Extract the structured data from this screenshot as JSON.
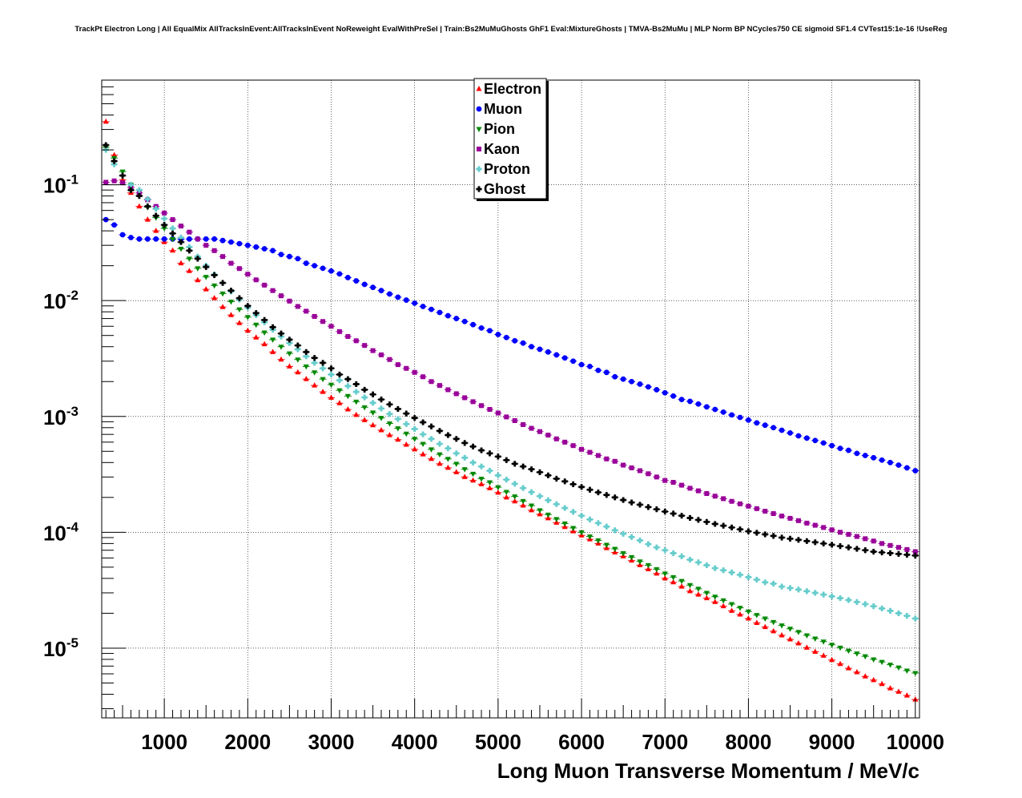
{
  "title": "TrackPt Electron Long | All EqualMix AllTracksInEvent:AllTracksInEvent NoReweight EvalWithPreSel | Train:Bs2MuMuGhosts GhF1 Eval:MixtureGhosts | TMVA-Bs2MuMu | MLP Norm BP NCycles750 CE sigmoid SF1.4 CVTest15:1e-16 !UseReg",
  "chart_data": {
    "type": "scatter",
    "title": "TrackPt Electron Long | All EqualMix AllTracksInEvent:AllTracksInEvent NoReweight EvalWithPreSel | Train:Bs2MuMuGhosts GhF1 Eval:MixtureGhosts | TMVA-Bs2MuMu | MLP Norm BP NCycles750 CE sigmoid SF1.4 CVTest15:1e-16 !UseReg",
    "xlabel": "Long Muon Transverse Momentum / MeV/c",
    "ylabel": "",
    "xlim": [
      250,
      10050
    ],
    "ylim": [
      2.5e-06,
      0.8
    ],
    "yscale": "log",
    "grid": true,
    "legend_position": "top-center",
    "x_ticks": [
      1000,
      2000,
      3000,
      4000,
      5000,
      6000,
      7000,
      8000,
      9000,
      10000
    ],
    "x_tick_labels": [
      "1000",
      "2000",
      "3000",
      "4000",
      "5000",
      "6000",
      "7000",
      "8000",
      "9000",
      "10000"
    ],
    "y_ticks": [
      0.1,
      0.01,
      0.001,
      0.0001,
      1e-05
    ],
    "y_tick_labels": [
      {
        "base": "10",
        "exp": "-1"
      },
      {
        "base": "10",
        "exp": "-2"
      },
      {
        "base": "10",
        "exp": "-3"
      },
      {
        "base": "10",
        "exp": "-4"
      },
      {
        "base": "10",
        "exp": "-5"
      }
    ],
    "bin_width": 100,
    "x_start": 300,
    "series": [
      {
        "name": "Electron",
        "color": "#ff0000",
        "marker": "triangle-up",
        "values": [
          0.35,
          0.18,
          0.11,
          0.085,
          0.065,
          0.05,
          0.04,
          0.032,
          0.027,
          0.021,
          0.018,
          0.015,
          0.0125,
          0.0105,
          0.0088,
          0.0075,
          0.0064,
          0.0055,
          0.0048,
          0.0042,
          0.0036,
          0.0031,
          0.0027,
          0.0024,
          0.0021,
          0.00185,
          0.00163,
          0.00145,
          0.0013,
          0.00115,
          0.00103,
          0.00093,
          0.00084,
          0.00076,
          0.00069,
          0.00063,
          0.00057,
          0.00052,
          0.00047,
          0.00043,
          0.00039,
          0.00036,
          0.00033,
          0.0003,
          0.00028,
          0.00026,
          0.00024,
          0.00022,
          0.0002,
          0.000185,
          0.00017,
          0.000155,
          0.000143,
          0.000132,
          0.000121,
          0.000111,
          0.000102,
          9.4e-05,
          8.7e-05,
          8e-05,
          7.3e-05,
          6.7e-05,
          6.2e-05,
          5.7e-05,
          5.2e-05,
          4.8e-05,
          4.4e-05,
          4e-05,
          3.7e-05,
          3.4e-05,
          3.1e-05,
          2.9e-05,
          2.7e-05,
          2.5e-05,
          2.3e-05,
          2.1e-05,
          1.95e-05,
          1.8e-05,
          1.65e-05,
          1.52e-05,
          1.4e-05,
          1.29e-05,
          1.19e-05,
          1.1e-05,
          1.01e-05,
          9.3e-06,
          8.6e-06,
          7.9e-06,
          7.3e-06,
          6.7e-06,
          6.2e-06,
          5.7e-06,
          5.3e-06,
          4.9e-06,
          4.5e-06,
          4.2e-06,
          3.9e-06,
          3.6e-06
        ]
      },
      {
        "name": "Muon",
        "color": "#0000ff",
        "marker": "circle",
        "values": [
          0.05,
          0.045,
          0.037,
          0.035,
          0.034,
          0.034,
          0.034,
          0.034,
          0.034,
          0.034,
          0.034,
          0.034,
          0.034,
          0.034,
          0.033,
          0.032,
          0.031,
          0.03,
          0.029,
          0.028,
          0.027,
          0.025,
          0.024,
          0.023,
          0.021,
          0.02,
          0.019,
          0.018,
          0.017,
          0.0158,
          0.0148,
          0.0138,
          0.013,
          0.0122,
          0.0114,
          0.0107,
          0.0101,
          0.0095,
          0.0089,
          0.0084,
          0.0079,
          0.0074,
          0.007,
          0.0066,
          0.0062,
          0.0058,
          0.0055,
          0.0051,
          0.0048,
          0.0045,
          0.0043,
          0.004,
          0.0038,
          0.0036,
          0.0034,
          0.0032,
          0.003,
          0.0028,
          0.0027,
          0.0025,
          0.0024,
          0.0022,
          0.0021,
          0.002,
          0.0019,
          0.0018,
          0.0017,
          0.0016,
          0.0015,
          0.0014,
          0.00135,
          0.00128,
          0.00121,
          0.00115,
          0.00109,
          0.00103,
          0.00098,
          0.00093,
          0.00088,
          0.00084,
          0.0008,
          0.00076,
          0.00072,
          0.00068,
          0.00065,
          0.00062,
          0.00059,
          0.00056,
          0.00053,
          0.00051,
          0.00048,
          0.00046,
          0.00044,
          0.00042,
          0.0004,
          0.00038,
          0.00036,
          0.00034
        ]
      },
      {
        "name": "Pion",
        "color": "#008800",
        "marker": "triangle-down",
        "values": [
          0.21,
          0.17,
          0.13,
          0.1,
          0.08,
          0.064,
          0.052,
          0.042,
          0.034,
          0.028,
          0.023,
          0.019,
          0.016,
          0.0135,
          0.0115,
          0.0098,
          0.0084,
          0.0072,
          0.0062,
          0.0053,
          0.0046,
          0.004,
          0.0035,
          0.0031,
          0.0027,
          0.0024,
          0.0021,
          0.00188,
          0.00168,
          0.0015,
          0.00134,
          0.0012,
          0.00108,
          0.00097,
          0.00087,
          0.00079,
          0.00071,
          0.00064,
          0.00058,
          0.00052,
          0.00047,
          0.00043,
          0.00039,
          0.00035,
          0.00032,
          0.00029,
          0.00027,
          0.000245,
          0.000223,
          0.000204,
          0.000186,
          0.00017,
          0.000155,
          0.000142,
          0.00013,
          0.000119,
          0.000109,
          0.0001,
          9.2e-05,
          8.5e-05,
          7.8e-05,
          7.2e-05,
          6.6e-05,
          6.1e-05,
          5.6e-05,
          5.2e-05,
          4.8e-05,
          4.4e-05,
          4.1e-05,
          3.8e-05,
          3.5e-05,
          3.25e-05,
          3e-05,
          2.78e-05,
          2.58e-05,
          2.4e-05,
          2.23e-05,
          2.07e-05,
          1.93e-05,
          1.8e-05,
          1.68e-05,
          1.57e-05,
          1.47e-05,
          1.38e-05,
          1.29e-05,
          1.21e-05,
          1.14e-05,
          1.07e-05,
          1.01e-05,
          9.5e-06,
          9e-06,
          8.5e-06,
          8e-06,
          7.6e-06,
          7.2e-06,
          6.8e-06,
          6.4e-06,
          6.1e-06
        ]
      },
      {
        "name": "Kaon",
        "color": "#990099",
        "marker": "square",
        "values": [
          0.105,
          0.108,
          0.104,
          0.095,
          0.085,
          0.074,
          0.065,
          0.057,
          0.05,
          0.044,
          0.039,
          0.034,
          0.03,
          0.027,
          0.024,
          0.021,
          0.0189,
          0.0169,
          0.0151,
          0.0136,
          0.0122,
          0.011,
          0.0099,
          0.0089,
          0.0081,
          0.0073,
          0.0066,
          0.006,
          0.0054,
          0.0049,
          0.0045,
          0.0041,
          0.0037,
          0.0034,
          0.0031,
          0.0028,
          0.0026,
          0.0024,
          0.0022,
          0.002,
          0.00185,
          0.0017,
          0.00157,
          0.00145,
          0.00134,
          0.00124,
          0.00115,
          0.00107,
          0.00099,
          0.00092,
          0.00085,
          0.00079,
          0.00074,
          0.00069,
          0.00064,
          0.0006,
          0.00056,
          0.00052,
          0.00049,
          0.00046,
          0.00043,
          0.00041,
          0.00038,
          0.00036,
          0.00034,
          0.00032,
          0.0003,
          0.00028,
          0.00027,
          0.000255,
          0.00024,
          0.000228,
          0.000216,
          0.000205,
          0.000195,
          0.000185,
          0.000176,
          0.000168,
          0.00016,
          0.000152,
          0.000145,
          0.000138,
          0.000132,
          0.000126,
          0.00012,
          0.000115,
          0.00011,
          0.000105,
          0.0001,
          9.6e-05,
          9.2e-05,
          8.8e-05,
          8.4e-05,
          8e-05,
          7.7e-05,
          7.4e-05,
          7.1e-05,
          6.8e-05
        ]
      },
      {
        "name": "Proton",
        "color": "#66cccc",
        "marker": "cross",
        "values": [
          0.2,
          0.15,
          0.12,
          0.1,
          0.09,
          0.075,
          0.062,
          0.051,
          0.042,
          0.035,
          0.029,
          0.024,
          0.02,
          0.0168,
          0.0142,
          0.012,
          0.0102,
          0.0087,
          0.0075,
          0.0065,
          0.0056,
          0.0049,
          0.0043,
          0.0038,
          0.0033,
          0.0029,
          0.0026,
          0.0023,
          0.00205,
          0.00183,
          0.00163,
          0.00146,
          0.00131,
          0.00117,
          0.00105,
          0.00095,
          0.00086,
          0.00078,
          0.0007,
          0.00064,
          0.00058,
          0.00053,
          0.00048,
          0.00044,
          0.0004,
          0.00037,
          0.00034,
          0.00031,
          0.000285,
          0.000262,
          0.000241,
          0.000222,
          0.000205,
          0.000189,
          0.000175,
          0.000162,
          0.00015,
          0.000139,
          0.000129,
          0.00012,
          0.000112,
          0.000104,
          9.7e-05,
          9.1e-05,
          8.5e-05,
          7.9e-05,
          7.4e-05,
          7e-05,
          6.6e-05,
          6.2e-05,
          5.8e-05,
          5.5e-05,
          5.2e-05,
          4.9e-05,
          4.7e-05,
          4.5e-05,
          4.3e-05,
          4.1e-05,
          3.9e-05,
          3.7e-05,
          3.6e-05,
          3.4e-05,
          3.3e-05,
          3.2e-05,
          3.1e-05,
          3e-05,
          2.9e-05,
          2.8e-05,
          2.7e-05,
          2.6e-05,
          2.5e-05,
          2.4e-05,
          2.3e-05,
          2.2e-05,
          2.1e-05,
          2e-05,
          1.9e-05,
          1.8e-05
        ]
      },
      {
        "name": "Ghost",
        "color": "#000000",
        "marker": "cross",
        "values": [
          0.22,
          0.16,
          0.12,
          0.09,
          0.08,
          0.065,
          0.054,
          0.045,
          0.038,
          0.032,
          0.027,
          0.023,
          0.0195,
          0.0166,
          0.0142,
          0.0122,
          0.0105,
          0.009,
          0.0078,
          0.0068,
          0.0059,
          0.0052,
          0.0046,
          0.0041,
          0.0036,
          0.0032,
          0.0029,
          0.0026,
          0.0023,
          0.0021,
          0.0019,
          0.0017,
          0.00155,
          0.0014,
          0.00127,
          0.00116,
          0.00106,
          0.00097,
          0.00089,
          0.00082,
          0.00075,
          0.00069,
          0.00064,
          0.00059,
          0.00055,
          0.00051,
          0.00048,
          0.00045,
          0.00042,
          0.00039,
          0.00037,
          0.00035,
          0.00033,
          0.00031,
          0.00029,
          0.000275,
          0.00026,
          0.000246,
          0.000233,
          0.000221,
          0.00021,
          0.0002,
          0.00019,
          0.000181,
          0.000173,
          0.000165,
          0.000158,
          0.000151,
          0.000145,
          0.000139,
          0.000133,
          0.000128,
          0.000123,
          0.000118,
          0.000114,
          0.00011,
          0.000106,
          0.000102,
          9.9e-05,
          9.6e-05,
          9.3e-05,
          9e-05,
          8.8e-05,
          8.6e-05,
          8.4e-05,
          8.2e-05,
          8e-05,
          7.8e-05,
          7.6e-05,
          7.4e-05,
          7.2e-05,
          7e-05,
          6.8e-05,
          6.7e-05,
          6.6e-05,
          6.5e-05,
          6.4e-05,
          6.3e-05
        ]
      }
    ]
  }
}
